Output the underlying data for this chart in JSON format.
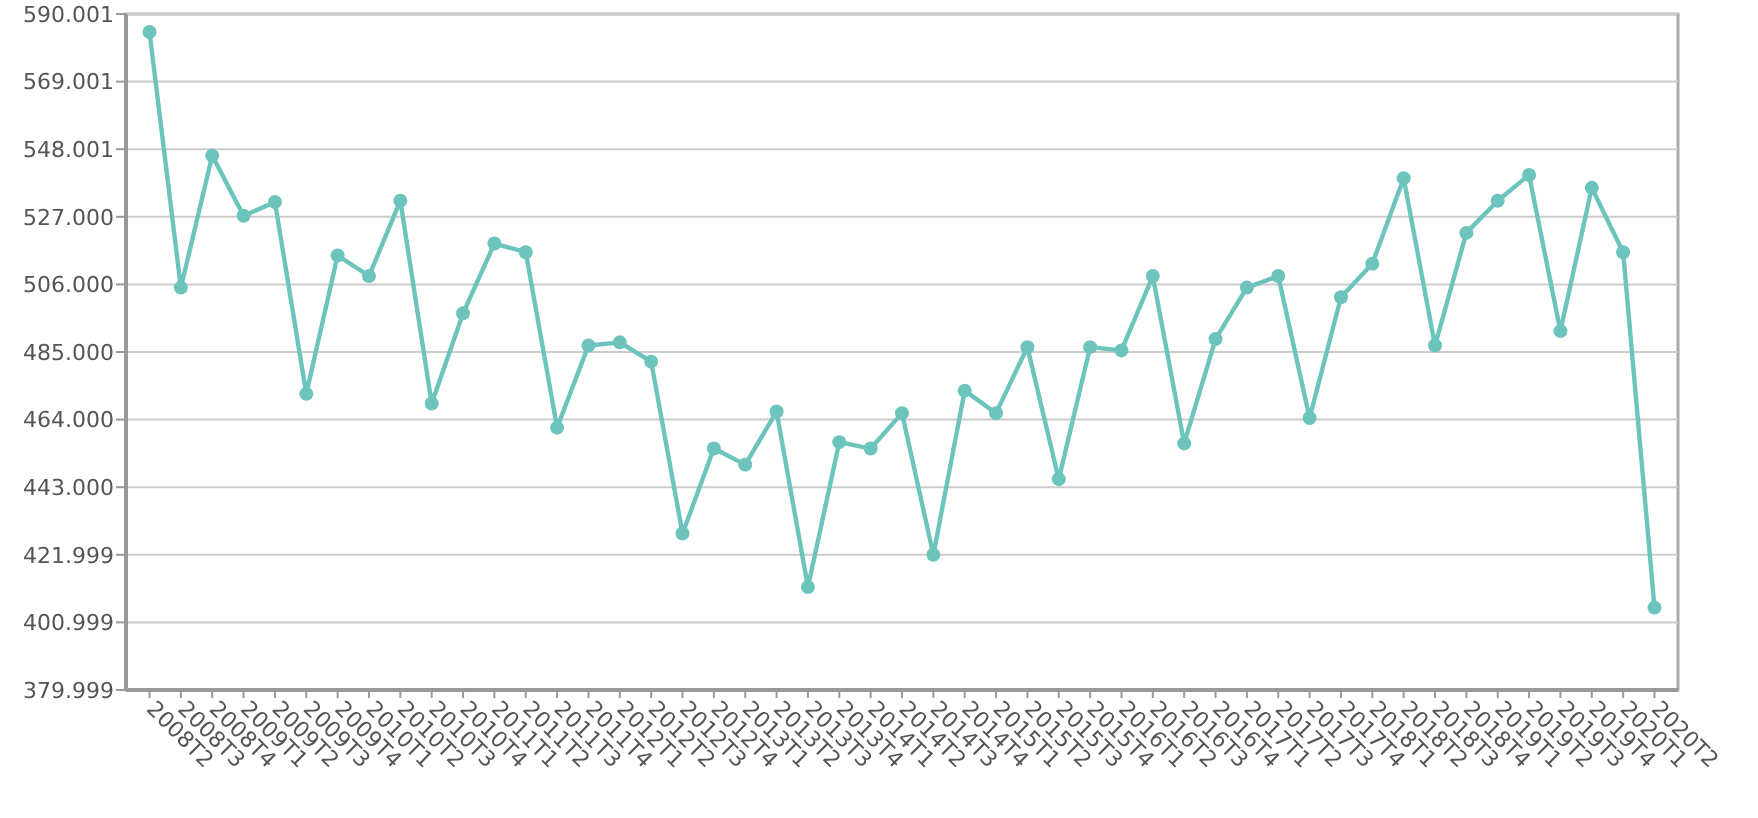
{
  "chart_data": {
    "type": "line",
    "categories": [
      "2008T2",
      "2008T3",
      "2008T4",
      "2009T1",
      "2009T2",
      "2009T3",
      "2009T4",
      "2010T1",
      "2010T2",
      "2010T3",
      "2010T4",
      "2011T1",
      "2011T2",
      "2011T3",
      "2011T4",
      "2012T1",
      "2012T2",
      "2012T3",
      "2012T4",
      "2013T1",
      "2013T2",
      "2013T3",
      "2013T4",
      "2014T1",
      "2014T2",
      "2014T3",
      "2014T4",
      "2015T1",
      "2015T2",
      "2015T3",
      "2015T4",
      "2016T1",
      "2016T2",
      "2016T3",
      "2016T4",
      "2017T1",
      "2017T2",
      "2017T3",
      "2017T4",
      "2018T1",
      "2018T2",
      "2018T3",
      "2018T4",
      "2019T1",
      "2019T2",
      "2019T3",
      "2019T4",
      "2020T1",
      "2020T2"
    ],
    "series": [
      {
        "color": "#6cc4bc",
        "values": [
          584.4,
          505,
          546,
          527.3,
          531.6,
          472,
          515,
          508.6,
          532,
          469,
          497,
          518.7,
          516,
          461.5,
          487,
          488,
          482,
          428.6,
          455,
          450,
          466.5,
          412,
          457,
          455,
          466,
          422,
          473,
          466,
          486.5,
          445.5,
          486.5,
          485.5,
          508.6,
          456.6,
          489,
          505,
          508.6,
          464.5,
          502,
          512.4,
          539,
          487,
          522,
          532,
          540,
          491.5,
          536,
          516,
          405.6
        ]
      }
    ],
    "ylim": [
      379.999,
      590.001
    ],
    "yticks": [
      {
        "value": 379.999,
        "label": "379.999"
      },
      {
        "value": 400.999,
        "label": "400.999"
      },
      {
        "value": 421.999,
        "label": "421.999"
      },
      {
        "value": 443,
        "label": "443.000"
      },
      {
        "value": 464,
        "label": "464.000"
      },
      {
        "value": 485,
        "label": "485.000"
      },
      {
        "value": 506,
        "label": "506.000"
      },
      {
        "value": 527,
        "label": "527.000"
      },
      {
        "value": 548.001,
        "label": "548.001"
      },
      {
        "value": 569.001,
        "label": "569.001"
      },
      {
        "value": 590.001,
        "label": "590.001"
      }
    ],
    "grid": "y",
    "marker": "circle",
    "line_style": "solid"
  }
}
